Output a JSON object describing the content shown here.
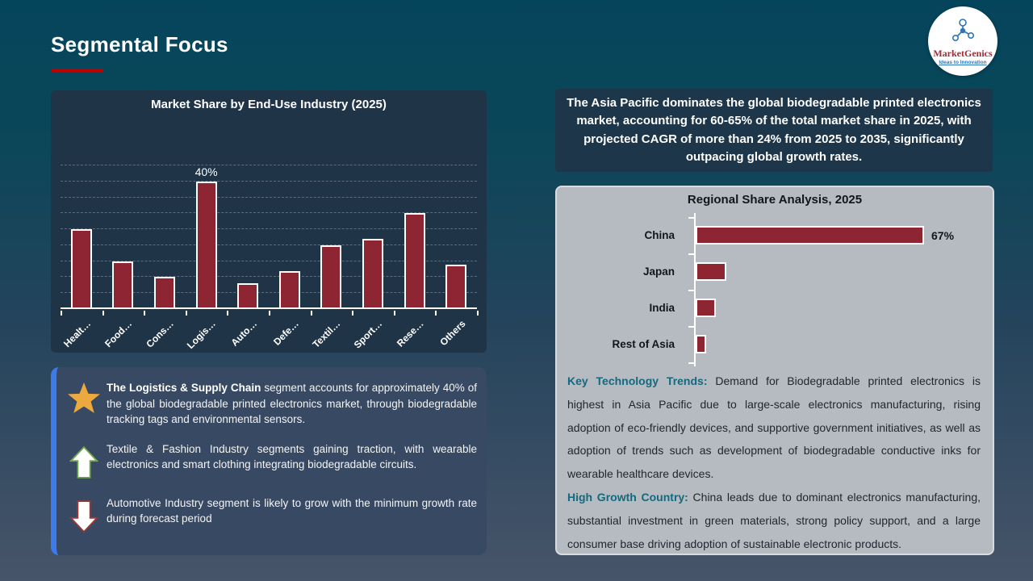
{
  "slide": {
    "title": "Segmental Focus",
    "logo": {
      "name": "MarketGenics",
      "tagline": "Ideas to Innovation"
    }
  },
  "left_panel": {
    "insights": [
      {
        "icon": "star",
        "lead": "The Logistics & Supply Chain",
        "text": " segment accounts for approximately 40% of the global biodegradable printed electronics market, through biodegradable tracking tags and environmental sensors."
      },
      {
        "icon": "up-arrow",
        "lead": "",
        "text": "Textile & Fashion Industry segments gaining traction, with wearable electronics and smart clothing integrating biodegradable circuits."
      },
      {
        "icon": "down-arrow",
        "lead": "",
        "text": "Automotive Industry segment is likely to grow with the minimum growth rate during forecast period"
      }
    ]
  },
  "right_panel": {
    "headline": "The Asia Pacific dominates the global biodegradable printed electronics market, accounting for 60-65% of the total market share in 2025, with projected CAGR of more than 24% from 2025 to 2035, significantly outpacing global growth rates.",
    "notes": [
      {
        "label": "Key Technology Trends:",
        "text": " Demand for Biodegradable printed electronics is highest in Asia Pacific due to large-scale electronics manufacturing, rising adoption of eco-friendly devices, and supportive government initiatives, as well as adoption of trends such as development of biodegradable conductive inks for wearable healthcare devices."
      },
      {
        "label": "High Growth Country:",
        "text": " China leads due to dominant electronics manufacturing, substantial investment in green materials, strong policy support, and a large consumer base driving adoption of sustainable electronic products."
      }
    ]
  },
  "chart_data": [
    {
      "type": "bar",
      "orientation": "vertical",
      "title": "Market Share by End-Use Industry (2025)",
      "categories": [
        "Healt…",
        "Food…",
        "Cons…",
        "Logis…",
        "Auto…",
        "Defe…",
        "Textil…",
        "Sport…",
        "Rese…",
        "Others"
      ],
      "values": [
        25,
        15,
        10,
        40,
        8,
        12,
        20,
        22,
        30,
        14
      ],
      "unit": "%",
      "data_labels": [
        "",
        "",
        "",
        "40%",
        "",
        "",
        "",
        "",
        "",
        ""
      ],
      "ylim": [
        0,
        45
      ],
      "gridlines": "dashed",
      "legend": "none",
      "bar_color": "#8d2533"
    },
    {
      "type": "bar",
      "orientation": "horizontal",
      "title": "Regional Share Analysis, 2025",
      "categories": [
        "China",
        "Japan",
        "India",
        "Rest of Asia"
      ],
      "values": [
        67,
        9,
        6,
        3
      ],
      "unit": "%",
      "data_labels": [
        "67%",
        "",
        "",
        ""
      ],
      "xlim": [
        0,
        100
      ],
      "gridlines": "off",
      "legend": "none",
      "bar_color": "#8d2533"
    }
  ],
  "colors": {
    "background_top": "#05455c",
    "background_bottom": "#475469",
    "panel_navy": "#203448",
    "panel_blue": "#384963",
    "panel_blue_accent": "#3e7bea",
    "panel_gray": "#b5bbc1",
    "bar_maroon": "#8d2533",
    "accent_red": "#c00000",
    "teal_label": "#15697e",
    "star_gold": "#eca93f",
    "arrow_green": "#6fa84c",
    "arrow_red": "#9c3a3a"
  }
}
